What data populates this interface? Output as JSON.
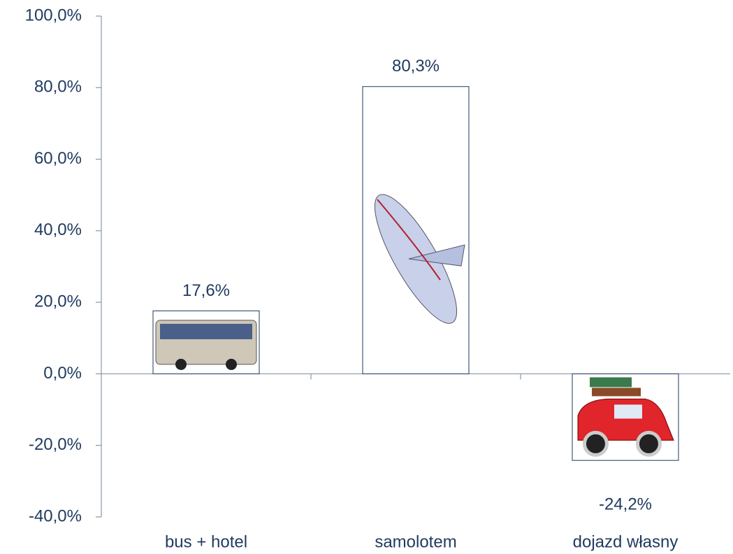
{
  "chart_data": {
    "type": "bar",
    "categories": [
      "bus + hotel",
      "samolotem",
      "dojazd własny"
    ],
    "values": [
      17.6,
      80.3,
      -24.2
    ],
    "value_labels": [
      "17,6%",
      "80,3%",
      "-24,2%"
    ],
    "color": "#ffffff",
    "ylim": [
      -40,
      100
    ],
    "yticks": [
      {
        "value": -40,
        "label": "-40,0%"
      },
      {
        "value": -20,
        "label": "-20,0%"
      },
      {
        "value": 0,
        "label": "0,0%"
      },
      {
        "value": 20,
        "label": "20,0%"
      },
      {
        "value": 40,
        "label": "40,0%"
      },
      {
        "value": 60,
        "label": "60,0%"
      },
      {
        "value": 80,
        "label": "80,0%"
      },
      {
        "value": 100,
        "label": "100,0%"
      }
    ],
    "grid": false
  }
}
